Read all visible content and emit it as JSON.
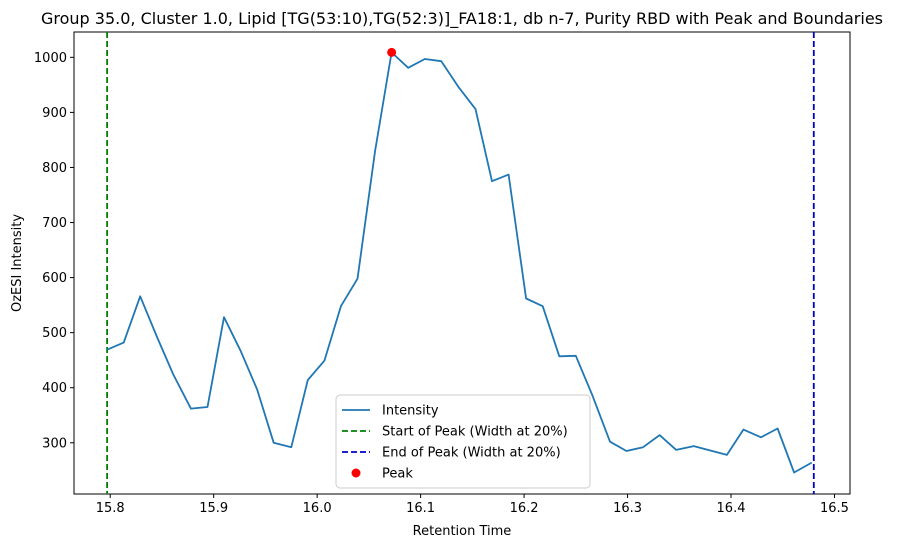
{
  "chart_data": {
    "type": "line",
    "title": "Group 35.0, Cluster 1.0, Lipid [TG(53:10),TG(52:3)]_FA18:1, db n-7, Purity RBD with Peak and Boundaries",
    "xlabel": "Retention Time",
    "ylabel": "OzESI Intensity",
    "xlim": [
      15.765,
      16.515
    ],
    "ylim": [
      207,
      1046
    ],
    "xticks": [
      {
        "value": 15.8,
        "label": "15.8"
      },
      {
        "value": 15.9,
        "label": "15.9"
      },
      {
        "value": 16.0,
        "label": "16.0"
      },
      {
        "value": 16.1,
        "label": "16.1"
      },
      {
        "value": 16.2,
        "label": "16.2"
      },
      {
        "value": 16.3,
        "label": "16.3"
      },
      {
        "value": 16.4,
        "label": "16.4"
      },
      {
        "value": 16.5,
        "label": "16.5"
      }
    ],
    "yticks": [
      {
        "value": 300,
        "label": "300"
      },
      {
        "value": 400,
        "label": "400"
      },
      {
        "value": 500,
        "label": "500"
      },
      {
        "value": 600,
        "label": "600"
      },
      {
        "value": 700,
        "label": "700"
      },
      {
        "value": 800,
        "label": "800"
      },
      {
        "value": 900,
        "label": "900"
      },
      {
        "value": 1000,
        "label": "1000"
      }
    ],
    "grid": false,
    "legend_position": "lower-center",
    "series": [
      {
        "name": "Intensity",
        "color": "#1f77b4",
        "x": [
          15.797,
          15.813,
          15.829,
          15.845,
          15.861,
          15.878,
          15.894,
          15.91,
          15.926,
          15.942,
          15.958,
          15.975,
          15.991,
          16.007,
          16.023,
          16.039,
          16.056,
          16.072,
          16.088,
          16.104,
          16.12,
          16.137,
          16.153,
          16.169,
          16.185,
          16.202,
          16.218,
          16.234,
          16.25,
          16.266,
          16.283,
          16.299,
          16.315,
          16.331,
          16.347,
          16.364,
          16.38,
          16.396,
          16.412,
          16.429,
          16.445,
          16.461,
          16.478
        ],
        "y": [
          469,
          482,
          566,
          493,
          424,
          362,
          365,
          528,
          467,
          397,
          300,
          292,
          414,
          449,
          548,
          598,
          830,
          1009,
          981,
          997,
          993,
          945,
          906,
          775,
          787,
          562,
          548,
          457,
          458,
          386,
          302,
          285,
          292,
          314,
          287,
          294,
          286,
          278,
          324,
          310,
          326,
          246,
          264
        ]
      }
    ],
    "vlines": [
      {
        "name": "Start of Peak (Width at 20%)",
        "x": 15.797,
        "color": "#008000",
        "style": "dashed"
      },
      {
        "name": "End of Peak (Width at 20%)",
        "x": 16.48,
        "color": "#0000cc",
        "style": "dashed"
      }
    ],
    "peak": {
      "name": "Peak",
      "x": 16.072,
      "y": 1009,
      "color": "#ff0000"
    },
    "legend": [
      {
        "label": "Intensity",
        "kind": "line",
        "color": "#1f77b4"
      },
      {
        "label": "Start of Peak (Width at 20%)",
        "kind": "dashed",
        "color": "#008000"
      },
      {
        "label": "End of Peak (Width at 20%)",
        "kind": "dashed",
        "color": "#0000cc"
      },
      {
        "label": "Peak",
        "kind": "point",
        "color": "#ff0000"
      }
    ]
  }
}
